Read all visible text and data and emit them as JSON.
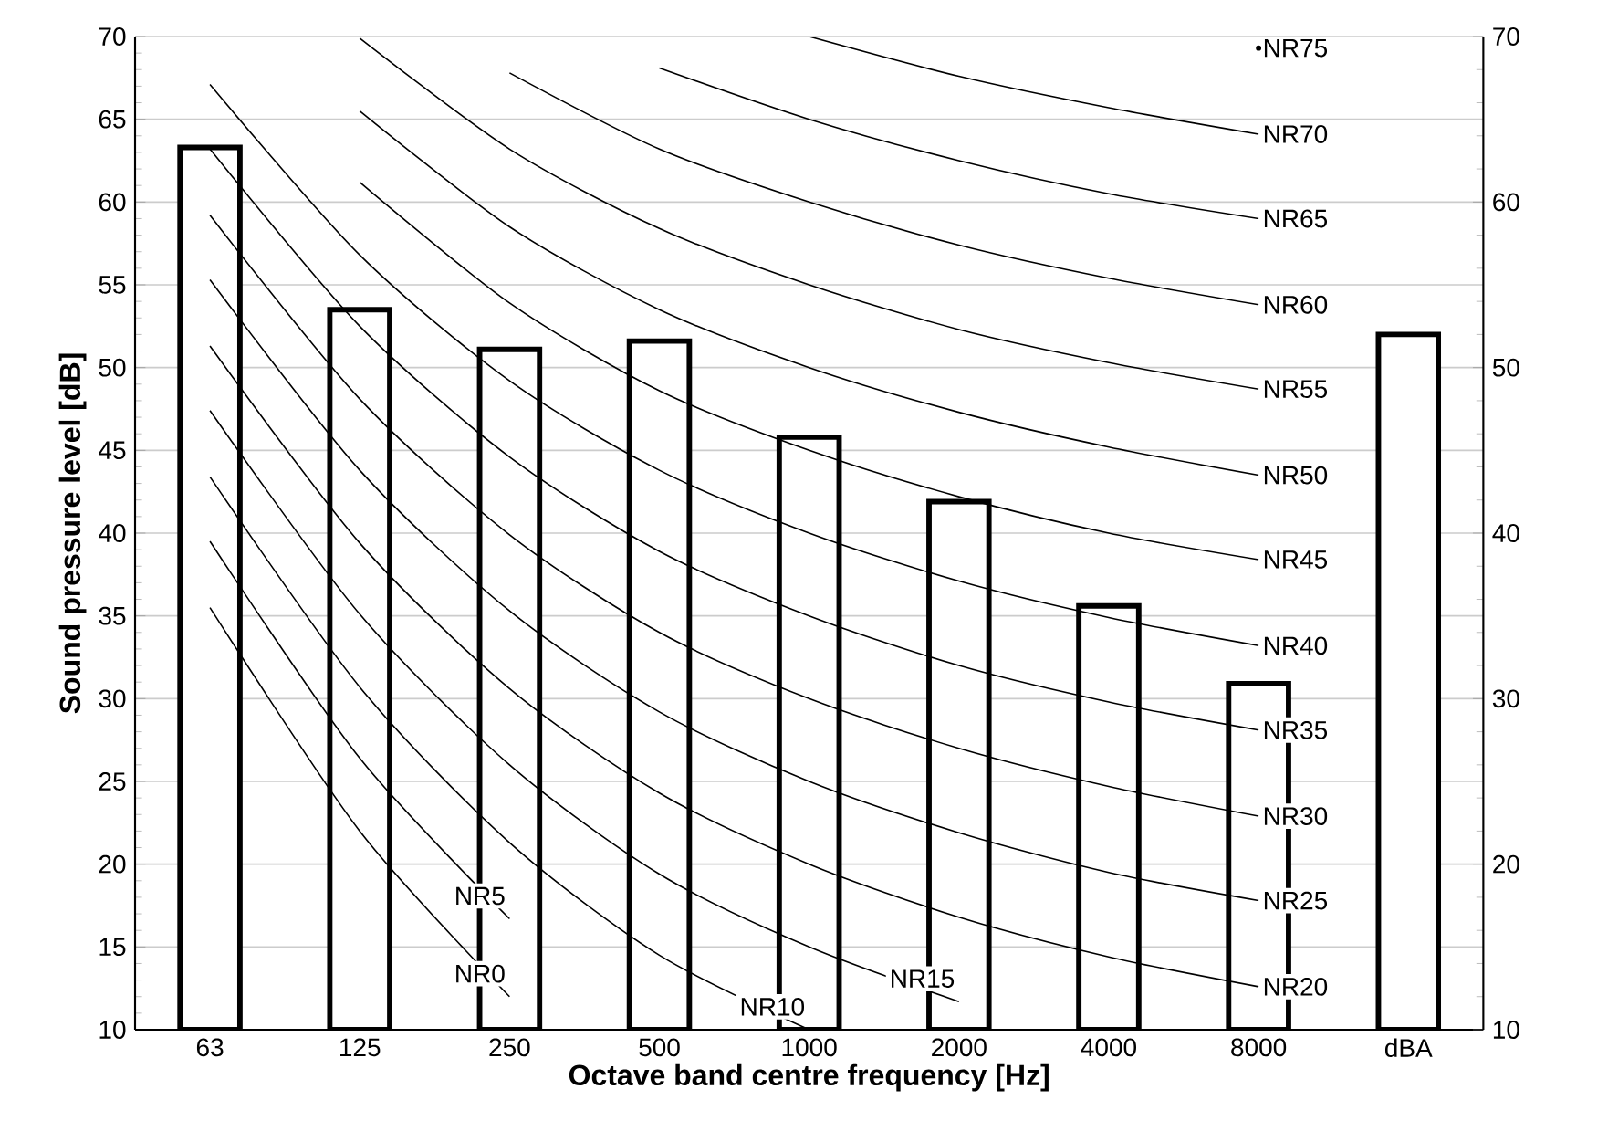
{
  "chart_data": {
    "type": "bar",
    "xlabel": "Octave band centre frequency [Hz]",
    "ylabel": "Sound pressure level [dB]",
    "categories": [
      "63",
      "125",
      "250",
      "500",
      "1000",
      "2000",
      "4000",
      "8000",
      "dBA"
    ],
    "ylim": [
      10,
      70
    ],
    "yticks": [
      10,
      15,
      20,
      25,
      30,
      35,
      40,
      45,
      50,
      55,
      60,
      65,
      70
    ],
    "y2lim": [
      10,
      70
    ],
    "y2ticks": [
      10,
      20,
      30,
      40,
      50,
      60,
      70
    ],
    "grid": "y",
    "series": [
      {
        "color": "#ffffff",
        "values": [
          63.3,
          53.5,
          51.1,
          51.6,
          45.8,
          41.9,
          35.6,
          30.9,
          52.0
        ]
      },
      {
        "type": "line",
        "name": "NR0",
        "color": "#000000",
        "values": [
          35.5,
          22.0,
          12.0,
          null,
          null,
          null,
          null,
          null,
          null
        ]
      },
      {
        "type": "line",
        "name": "NR5",
        "color": "#000000",
        "values": [
          39.5,
          26.4,
          16.7,
          null,
          null,
          null,
          null,
          null,
          null
        ]
      },
      {
        "type": "line",
        "name": "NR10",
        "color": "#000000",
        "values": [
          43.4,
          30.7,
          21.3,
          14.5,
          10.0,
          null,
          null,
          null,
          null
        ]
      },
      {
        "type": "line",
        "name": "NR15",
        "color": "#000000",
        "values": [
          47.4,
          35.1,
          26.0,
          19.4,
          15.0,
          11.7,
          null,
          null,
          null
        ]
      },
      {
        "type": "line",
        "name": "NR20",
        "color": "#000000",
        "values": [
          51.3,
          39.4,
          30.6,
          24.3,
          20.0,
          16.8,
          14.4,
          12.6,
          null
        ]
      },
      {
        "type": "line",
        "name": "NR25",
        "color": "#000000",
        "values": [
          55.3,
          43.8,
          35.3,
          29.2,
          25.0,
          21.9,
          19.5,
          17.8,
          null
        ]
      },
      {
        "type": "line",
        "name": "NR30",
        "color": "#000000",
        "values": [
          59.2,
          48.1,
          39.9,
          34.0,
          30.0,
          27.0,
          24.7,
          22.9,
          null
        ]
      },
      {
        "type": "line",
        "name": "NR35",
        "color": "#000000",
        "values": [
          63.2,
          52.5,
          44.6,
          38.9,
          35.0,
          32.0,
          29.8,
          28.1,
          null
        ]
      },
      {
        "type": "line",
        "name": "NR40",
        "color": "#000000",
        "values": [
          67.1,
          56.8,
          49.2,
          43.8,
          40.0,
          37.1,
          34.9,
          33.2,
          null
        ]
      },
      {
        "type": "line",
        "name": "NR45",
        "color": "#000000",
        "values": [
          null,
          61.2,
          53.9,
          48.6,
          45.0,
          42.2,
          40.0,
          38.4,
          null
        ]
      },
      {
        "type": "line",
        "name": "NR50",
        "color": "#000000",
        "values": [
          null,
          65.5,
          58.5,
          53.5,
          50.0,
          47.3,
          45.2,
          43.5,
          null
        ]
      },
      {
        "type": "line",
        "name": "NR55",
        "color": "#000000",
        "values": [
          null,
          69.9,
          63.2,
          58.4,
          55.0,
          52.3,
          50.3,
          48.7,
          null
        ]
      },
      {
        "type": "line",
        "name": "NR60",
        "color": "#000000",
        "values": [
          null,
          null,
          67.8,
          63.2,
          60.0,
          57.4,
          55.4,
          53.8,
          null
        ]
      },
      {
        "type": "line",
        "name": "NR65",
        "color": "#000000",
        "values": [
          null,
          null,
          null,
          68.1,
          65.0,
          62.5,
          60.5,
          59.0,
          null
        ]
      },
      {
        "type": "line",
        "name": "NR70",
        "color": "#000000",
        "values": [
          null,
          null,
          null,
          null,
          70.0,
          67.6,
          65.7,
          64.1,
          null
        ]
      },
      {
        "type": "line",
        "name": "NR75",
        "color": "#000000",
        "marker": "circle",
        "values": [
          null,
          null,
          null,
          null,
          null,
          null,
          null,
          69.3,
          null
        ]
      }
    ]
  }
}
